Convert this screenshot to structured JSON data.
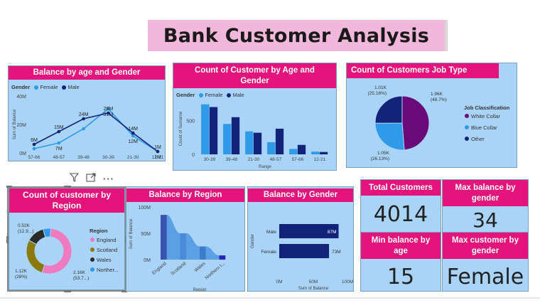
{
  "title": "Bank Customer Analysis",
  "toolbar": {
    "filter_icon": "filter-icon",
    "focus_icon": "focus-mode-icon",
    "more_label": "···"
  },
  "kpis": {
    "total_customers": {
      "label": "Total Customers",
      "value": "4014"
    },
    "max_balance_by_gender": {
      "label": "Max balance by gender",
      "value": "34"
    },
    "min_balance_by_age": {
      "label": "Min balance by age",
      "value": "15"
    },
    "max_customer_by_gender": {
      "label": "Max customer by gender",
      "value": "Female"
    }
  },
  "colors": {
    "header_pink": "#e4147c",
    "panel_blue": "#a9d4f7",
    "female": "#2f9be8",
    "male": "#14237a",
    "purple": "#6a0a7a",
    "dark_olive": "#8a7a10"
  },
  "chart_data": [
    {
      "id": "balance_age_gender",
      "type": "line",
      "title": "Balance by age and Gender",
      "legend_title": "Gender",
      "xlabel": "Range",
      "ylabel": "Sum of Balance",
      "categories": [
        "57-66",
        "48-57",
        "39-48",
        "30-39",
        "21-30",
        "12-21"
      ],
      "y_ticks": [
        "0M",
        "20M",
        "40M"
      ],
      "ylim": [
        0,
        40
      ],
      "series": [
        {
          "name": "Female",
          "values": [
            3,
            7,
            17,
            31,
            12,
            1
          ],
          "labels": [
            "",
            "7M",
            "",
            "31M",
            "12M",
            "1M"
          ]
        },
        {
          "name": "Male",
          "values": [
            6,
            15,
            24,
            28,
            14,
            1
          ],
          "labels": [
            "6M",
            "15M",
            "24M",
            "28M",
            "14M",
            "1M"
          ]
        }
      ]
    },
    {
      "id": "count_age_gender",
      "type": "bar",
      "title": "Count of Customer by Age and Gender",
      "legend_title": "Gender",
      "xlabel": "Range",
      "ylabel": "Count of Surname",
      "categories": [
        "30-39",
        "39-48",
        "21-30",
        "48-57",
        "57-66",
        "12-21"
      ],
      "y_ticks": [
        "0",
        "500"
      ],
      "ylim": [
        0,
        800
      ],
      "series": [
        {
          "name": "Female",
          "values": [
            740,
            450,
            340,
            180,
            80,
            40
          ]
        },
        {
          "name": "Male",
          "values": [
            700,
            550,
            320,
            380,
            140,
            35
          ]
        }
      ]
    },
    {
      "id": "job_type",
      "type": "pie",
      "title": "Count of Customers Job Type",
      "legend_title": "Job Classification",
      "slices": [
        {
          "name": "White Collar",
          "value": 1.96,
          "label": "1.96K",
          "pct": "(48.7%)"
        },
        {
          "name": "Blue Collar",
          "value": 1.05,
          "label": "1.05K",
          "pct": "(26.13%)"
        },
        {
          "name": "Other",
          "value": 1.01,
          "label": "1.01K",
          "pct": "(25.16%)"
        }
      ]
    },
    {
      "id": "customer_region",
      "type": "pie",
      "title": "Count of customer by Region",
      "legend_title": "Region",
      "slices": [
        {
          "name": "England",
          "value": 2.16,
          "label": "2.16K",
          "pct": "(53.7...)"
        },
        {
          "name": "Scotland",
          "value": 1.12,
          "label": "1.12K",
          "pct": "(28%)"
        },
        {
          "name": "Wales",
          "value": 0.52,
          "label": "0.52K",
          "pct": "(12.9...)"
        },
        {
          "name": "Norther...",
          "value": 0.22,
          "label": "",
          "pct": ""
        }
      ]
    },
    {
      "id": "balance_region",
      "type": "area",
      "title": "Balance by Region",
      "xlabel": "Region",
      "ylabel": "Sum of Balance",
      "categories": [
        "England",
        "Scotland",
        "Wales",
        "Northern I..."
      ],
      "y_ticks": [
        "0M",
        "50M",
        "100M"
      ],
      "ylim": [
        0,
        100
      ],
      "values": [
        85,
        50,
        25,
        8
      ]
    },
    {
      "id": "balance_gender",
      "type": "bar",
      "title": "Balance by Gender",
      "xlabel": "Sum of Balance",
      "ylabel": "Gender",
      "categories": [
        "Male",
        "Female"
      ],
      "x_ticks": [
        "0M",
        "50M",
        "100M"
      ],
      "xlim": [
        0,
        100
      ],
      "values": [
        87,
        73
      ],
      "labels": [
        "87M",
        "73M"
      ]
    }
  ]
}
